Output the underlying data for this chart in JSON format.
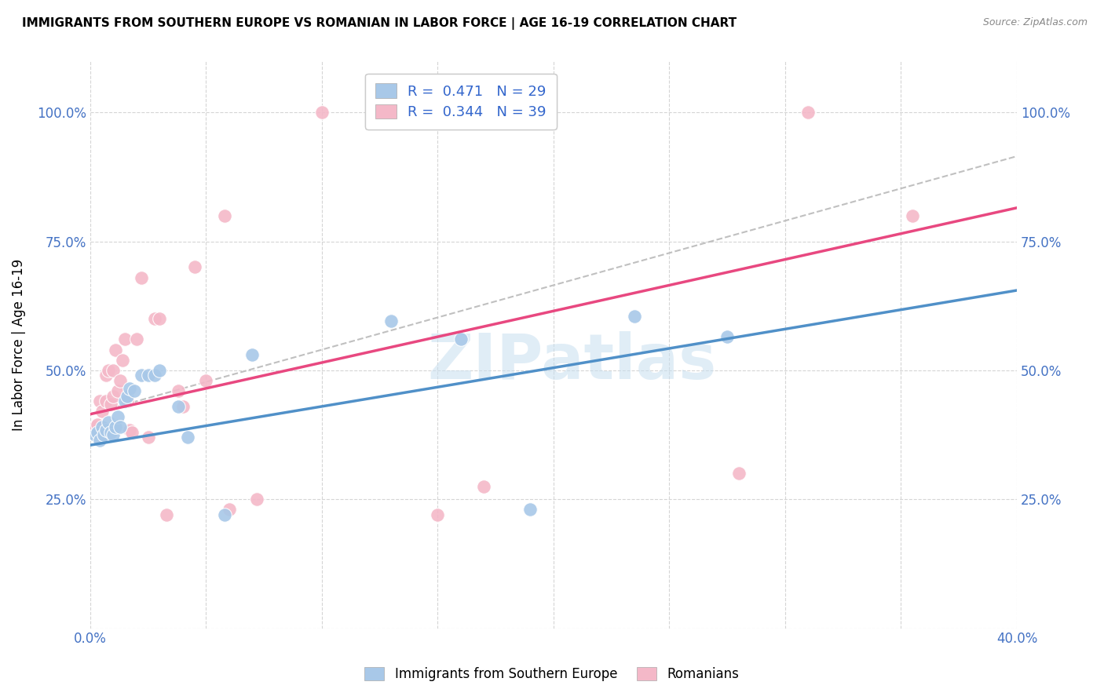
{
  "title": "IMMIGRANTS FROM SOUTHERN EUROPE VS ROMANIAN IN LABOR FORCE | AGE 16-19 CORRELATION CHART",
  "source": "Source: ZipAtlas.com",
  "ylabel": "In Labor Force | Age 16-19",
  "xlim": [
    0.0,
    0.4
  ],
  "ylim": [
    0.0,
    1.1
  ],
  "xticks": [
    0.0,
    0.05,
    0.1,
    0.15,
    0.2,
    0.25,
    0.3,
    0.35,
    0.4
  ],
  "yticks": [
    0.0,
    0.25,
    0.5,
    0.75,
    1.0
  ],
  "blue_color": "#a8c8e8",
  "pink_color": "#f4b8c8",
  "blue_line_color": "#5090c8",
  "pink_line_color": "#e84880",
  "gray_line_color": "#c0c0c0",
  "legend_label_blue": "Immigrants from Southern Europe",
  "legend_label_pink": "Romanians",
  "blue_R": 0.471,
  "blue_N": 29,
  "pink_R": 0.344,
  "pink_N": 39,
  "blue_line_x0": 0.0,
  "blue_line_y0": 0.355,
  "blue_line_x1": 0.4,
  "blue_line_y1": 0.655,
  "pink_line_x0": 0.0,
  "pink_line_y0": 0.415,
  "pink_line_x1": 0.4,
  "pink_line_y1": 0.815,
  "gray_line_x0": 0.0,
  "gray_line_y0": 0.415,
  "gray_line_x1": 0.4,
  "gray_line_y1": 0.915,
  "blue_x": [
    0.002,
    0.003,
    0.004,
    0.005,
    0.006,
    0.007,
    0.008,
    0.009,
    0.01,
    0.011,
    0.012,
    0.013,
    0.015,
    0.016,
    0.017,
    0.019,
    0.022,
    0.025,
    0.028,
    0.03,
    0.038,
    0.042,
    0.058,
    0.07,
    0.13,
    0.16,
    0.19,
    0.235,
    0.275
  ],
  "blue_y": [
    0.375,
    0.38,
    0.365,
    0.39,
    0.375,
    0.385,
    0.4,
    0.38,
    0.375,
    0.39,
    0.41,
    0.39,
    0.44,
    0.45,
    0.465,
    0.46,
    0.49,
    0.49,
    0.49,
    0.5,
    0.43,
    0.37,
    0.22,
    0.53,
    0.595,
    0.56,
    0.23,
    0.605,
    0.565
  ],
  "pink_x": [
    0.002,
    0.003,
    0.004,
    0.004,
    0.005,
    0.006,
    0.007,
    0.007,
    0.008,
    0.009,
    0.01,
    0.01,
    0.011,
    0.012,
    0.013,
    0.014,
    0.015,
    0.016,
    0.017,
    0.018,
    0.02,
    0.022,
    0.025,
    0.028,
    0.03,
    0.033,
    0.038,
    0.04,
    0.045,
    0.05,
    0.058,
    0.06,
    0.072,
    0.1,
    0.15,
    0.17,
    0.28,
    0.31,
    0.355
  ],
  "pink_y": [
    0.39,
    0.395,
    0.37,
    0.44,
    0.42,
    0.37,
    0.44,
    0.49,
    0.5,
    0.435,
    0.45,
    0.5,
    0.54,
    0.46,
    0.48,
    0.52,
    0.56,
    0.44,
    0.385,
    0.38,
    0.56,
    0.68,
    0.37,
    0.6,
    0.6,
    0.22,
    0.46,
    0.43,
    0.7,
    0.48,
    0.8,
    0.23,
    0.25,
    1.0,
    0.22,
    0.275,
    0.3,
    1.0,
    0.8
  ]
}
